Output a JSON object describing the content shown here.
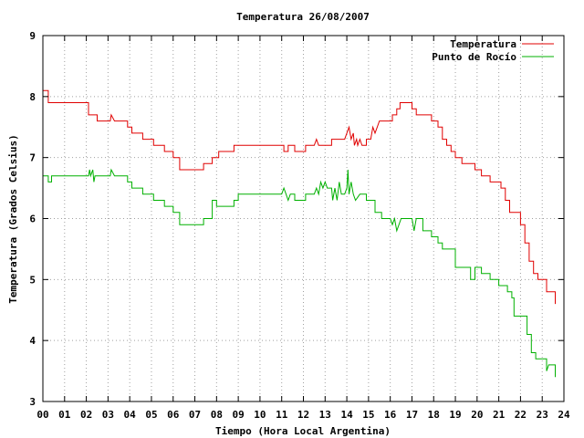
{
  "chart_data": {
    "type": "line",
    "title": "Temperatura 26/08/2007",
    "xlabel": "Tiempo (Hora Local Argentina)",
    "ylabel": "Temperatura (Grados Celsius)",
    "xlim": [
      0,
      24
    ],
    "ylim": [
      3,
      9
    ],
    "x_ticks": [
      "00",
      "01",
      "02",
      "03",
      "04",
      "05",
      "06",
      "07",
      "08",
      "09",
      "10",
      "11",
      "12",
      "13",
      "14",
      "15",
      "16",
      "17",
      "18",
      "19",
      "20",
      "21",
      "22",
      "23",
      "24"
    ],
    "y_ticks": [
      "3",
      "4",
      "5",
      "6",
      "7",
      "8",
      "9"
    ],
    "grid": true,
    "legend_position": "top-right",
    "colors": {
      "temperatura": "#e00000",
      "punto_rocio": "#00b000"
    },
    "series": [
      {
        "name": "Temperatura",
        "color": "#e00000",
        "points": [
          [
            0.0,
            8.1
          ],
          [
            0.25,
            8.1
          ],
          [
            0.25,
            7.9
          ],
          [
            2.1,
            7.9
          ],
          [
            2.1,
            7.7
          ],
          [
            2.5,
            7.7
          ],
          [
            2.5,
            7.6
          ],
          [
            3.1,
            7.6
          ],
          [
            3.15,
            7.7
          ],
          [
            3.3,
            7.6
          ],
          [
            3.9,
            7.6
          ],
          [
            3.9,
            7.5
          ],
          [
            4.1,
            7.5
          ],
          [
            4.1,
            7.4
          ],
          [
            4.6,
            7.4
          ],
          [
            4.6,
            7.3
          ],
          [
            5.1,
            7.3
          ],
          [
            5.1,
            7.2
          ],
          [
            5.6,
            7.2
          ],
          [
            5.6,
            7.1
          ],
          [
            6.0,
            7.1
          ],
          [
            6.0,
            7.0
          ],
          [
            6.3,
            7.0
          ],
          [
            6.3,
            6.8
          ],
          [
            7.4,
            6.8
          ],
          [
            7.4,
            6.9
          ],
          [
            7.8,
            6.9
          ],
          [
            7.8,
            7.0
          ],
          [
            8.1,
            7.0
          ],
          [
            8.1,
            7.1
          ],
          [
            8.8,
            7.1
          ],
          [
            8.8,
            7.2
          ],
          [
            11.1,
            7.2
          ],
          [
            11.1,
            7.1
          ],
          [
            11.3,
            7.1
          ],
          [
            11.3,
            7.2
          ],
          [
            11.6,
            7.2
          ],
          [
            11.6,
            7.1
          ],
          [
            12.1,
            7.1
          ],
          [
            12.1,
            7.2
          ],
          [
            12.5,
            7.2
          ],
          [
            12.6,
            7.3
          ],
          [
            12.7,
            7.2
          ],
          [
            13.3,
            7.2
          ],
          [
            13.3,
            7.3
          ],
          [
            13.9,
            7.3
          ],
          [
            14.0,
            7.4
          ],
          [
            14.1,
            7.5
          ],
          [
            14.2,
            7.3
          ],
          [
            14.3,
            7.4
          ],
          [
            14.35,
            7.2
          ],
          [
            14.45,
            7.3
          ],
          [
            14.5,
            7.2
          ],
          [
            14.6,
            7.3
          ],
          [
            14.7,
            7.2
          ],
          [
            14.9,
            7.2
          ],
          [
            14.9,
            7.3
          ],
          [
            15.1,
            7.3
          ],
          [
            15.2,
            7.5
          ],
          [
            15.3,
            7.4
          ],
          [
            15.4,
            7.5
          ],
          [
            15.5,
            7.6
          ],
          [
            16.1,
            7.6
          ],
          [
            16.1,
            7.7
          ],
          [
            16.3,
            7.7
          ],
          [
            16.3,
            7.8
          ],
          [
            16.45,
            7.8
          ],
          [
            16.45,
            7.9
          ],
          [
            17.0,
            7.9
          ],
          [
            17.0,
            7.8
          ],
          [
            17.2,
            7.8
          ],
          [
            17.2,
            7.7
          ],
          [
            17.9,
            7.7
          ],
          [
            17.9,
            7.6
          ],
          [
            18.2,
            7.6
          ],
          [
            18.2,
            7.5
          ],
          [
            18.4,
            7.5
          ],
          [
            18.4,
            7.3
          ],
          [
            18.6,
            7.3
          ],
          [
            18.6,
            7.2
          ],
          [
            18.8,
            7.2
          ],
          [
            18.8,
            7.1
          ],
          [
            19.0,
            7.1
          ],
          [
            19.0,
            7.0
          ],
          [
            19.3,
            7.0
          ],
          [
            19.3,
            6.9
          ],
          [
            19.9,
            6.9
          ],
          [
            19.9,
            6.8
          ],
          [
            20.2,
            6.8
          ],
          [
            20.2,
            6.7
          ],
          [
            20.6,
            6.7
          ],
          [
            20.6,
            6.6
          ],
          [
            21.1,
            6.6
          ],
          [
            21.1,
            6.5
          ],
          [
            21.3,
            6.5
          ],
          [
            21.3,
            6.3
          ],
          [
            21.5,
            6.3
          ],
          [
            21.5,
            6.1
          ],
          [
            22.0,
            6.1
          ],
          [
            22.0,
            5.9
          ],
          [
            22.2,
            5.9
          ],
          [
            22.2,
            5.6
          ],
          [
            22.4,
            5.6
          ],
          [
            22.4,
            5.3
          ],
          [
            22.6,
            5.3
          ],
          [
            22.6,
            5.1
          ],
          [
            22.8,
            5.1
          ],
          [
            22.8,
            5.0
          ],
          [
            23.2,
            5.0
          ],
          [
            23.2,
            4.8
          ],
          [
            23.6,
            4.8
          ],
          [
            23.6,
            4.6
          ]
        ]
      },
      {
        "name": "Punto de Rocío",
        "color": "#00b000",
        "points": [
          [
            0.0,
            6.7
          ],
          [
            0.25,
            6.7
          ],
          [
            0.25,
            6.6
          ],
          [
            0.4,
            6.6
          ],
          [
            0.4,
            6.7
          ],
          [
            2.1,
            6.7
          ],
          [
            2.15,
            6.8
          ],
          [
            2.2,
            6.7
          ],
          [
            2.3,
            6.8
          ],
          [
            2.35,
            6.6
          ],
          [
            2.4,
            6.7
          ],
          [
            3.1,
            6.7
          ],
          [
            3.15,
            6.8
          ],
          [
            3.3,
            6.7
          ],
          [
            3.9,
            6.7
          ],
          [
            3.9,
            6.6
          ],
          [
            4.1,
            6.6
          ],
          [
            4.1,
            6.5
          ],
          [
            4.6,
            6.5
          ],
          [
            4.6,
            6.4
          ],
          [
            5.1,
            6.4
          ],
          [
            5.1,
            6.3
          ],
          [
            5.6,
            6.3
          ],
          [
            5.6,
            6.2
          ],
          [
            6.0,
            6.2
          ],
          [
            6.0,
            6.1
          ],
          [
            6.3,
            6.1
          ],
          [
            6.3,
            5.9
          ],
          [
            7.4,
            5.9
          ],
          [
            7.4,
            6.0
          ],
          [
            7.8,
            6.0
          ],
          [
            7.8,
            6.3
          ],
          [
            8.0,
            6.3
          ],
          [
            8.0,
            6.2
          ],
          [
            8.8,
            6.2
          ],
          [
            8.8,
            6.3
          ],
          [
            9.0,
            6.3
          ],
          [
            9.0,
            6.4
          ],
          [
            11.0,
            6.4
          ],
          [
            11.1,
            6.5
          ],
          [
            11.2,
            6.4
          ],
          [
            11.3,
            6.3
          ],
          [
            11.4,
            6.4
          ],
          [
            11.6,
            6.4
          ],
          [
            11.6,
            6.3
          ],
          [
            12.1,
            6.3
          ],
          [
            12.1,
            6.4
          ],
          [
            12.5,
            6.4
          ],
          [
            12.6,
            6.5
          ],
          [
            12.7,
            6.4
          ],
          [
            12.8,
            6.6
          ],
          [
            12.9,
            6.5
          ],
          [
            13.0,
            6.6
          ],
          [
            13.1,
            6.5
          ],
          [
            13.3,
            6.5
          ],
          [
            13.35,
            6.3
          ],
          [
            13.45,
            6.5
          ],
          [
            13.55,
            6.3
          ],
          [
            13.65,
            6.6
          ],
          [
            13.75,
            6.4
          ],
          [
            13.9,
            6.4
          ],
          [
            14.0,
            6.5
          ],
          [
            14.05,
            6.8
          ],
          [
            14.1,
            6.4
          ],
          [
            14.2,
            6.6
          ],
          [
            14.3,
            6.4
          ],
          [
            14.4,
            6.3
          ],
          [
            14.6,
            6.4
          ],
          [
            14.9,
            6.4
          ],
          [
            14.9,
            6.3
          ],
          [
            15.3,
            6.3
          ],
          [
            15.3,
            6.1
          ],
          [
            15.6,
            6.1
          ],
          [
            15.6,
            6.0
          ],
          [
            16.0,
            6.0
          ],
          [
            16.1,
            5.9
          ],
          [
            16.2,
            6.0
          ],
          [
            16.3,
            5.8
          ],
          [
            16.5,
            6.0
          ],
          [
            17.0,
            6.0
          ],
          [
            17.1,
            5.8
          ],
          [
            17.2,
            6.0
          ],
          [
            17.5,
            6.0
          ],
          [
            17.5,
            5.8
          ],
          [
            17.9,
            5.8
          ],
          [
            17.9,
            5.7
          ],
          [
            18.2,
            5.7
          ],
          [
            18.2,
            5.6
          ],
          [
            18.4,
            5.6
          ],
          [
            18.4,
            5.5
          ],
          [
            19.0,
            5.5
          ],
          [
            19.0,
            5.2
          ],
          [
            19.7,
            5.2
          ],
          [
            19.7,
            5.0
          ],
          [
            19.9,
            5.0
          ],
          [
            19.9,
            5.2
          ],
          [
            20.2,
            5.2
          ],
          [
            20.2,
            5.1
          ],
          [
            20.6,
            5.1
          ],
          [
            20.6,
            5.0
          ],
          [
            21.0,
            5.0
          ],
          [
            21.0,
            4.9
          ],
          [
            21.4,
            4.9
          ],
          [
            21.4,
            4.8
          ],
          [
            21.6,
            4.8
          ],
          [
            21.6,
            4.7
          ],
          [
            21.7,
            4.7
          ],
          [
            21.7,
            4.4
          ],
          [
            22.3,
            4.4
          ],
          [
            22.3,
            4.1
          ],
          [
            22.5,
            4.1
          ],
          [
            22.5,
            3.8
          ],
          [
            22.7,
            3.8
          ],
          [
            22.7,
            3.7
          ],
          [
            23.2,
            3.7
          ],
          [
            23.2,
            3.5
          ],
          [
            23.3,
            3.6
          ],
          [
            23.6,
            3.6
          ],
          [
            23.6,
            3.4
          ]
        ]
      }
    ]
  }
}
